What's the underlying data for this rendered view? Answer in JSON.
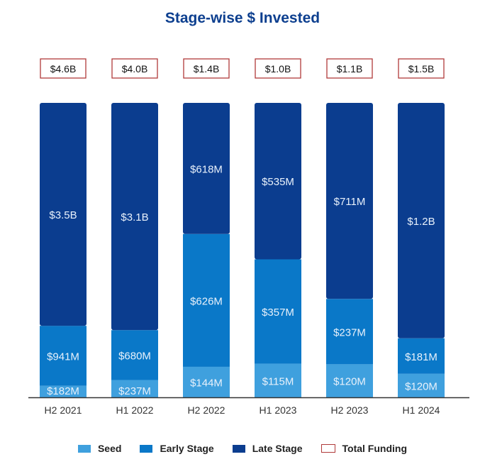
{
  "chart_data": {
    "type": "bar",
    "stacked": true,
    "normalized": true,
    "title": "Stage-wise $ Invested",
    "categories": [
      "H2 2021",
      "H1 2022",
      "H2 2022",
      "H1 2023",
      "H2 2023",
      "H1 2024"
    ],
    "series": [
      {
        "name": "Seed",
        "color": "#3fa0de",
        "values_musd": [
          182,
          237,
          144,
          115,
          120,
          120
        ],
        "labels": [
          "$182M",
          "$237M",
          "$144M",
          "$115M",
          "$120M",
          "$120M"
        ]
      },
      {
        "name": "Early Stage",
        "color": "#0a78c8",
        "values_musd": [
          941,
          680,
          626,
          357,
          237,
          181
        ],
        "labels": [
          "$941M",
          "$680M",
          "$626M",
          "$357M",
          "$237M",
          "$181M"
        ]
      },
      {
        "name": "Late Stage",
        "color": "#0b3d8f",
        "values_musd": [
          3500,
          3100,
          618,
          535,
          711,
          1200
        ],
        "labels": [
          "$3.5B",
          "$3.1B",
          "$618M",
          "$535M",
          "$711M",
          "$1.2B"
        ]
      }
    ],
    "total_funding": {
      "name": "Total Funding",
      "color": "#b03a3a",
      "labels": [
        "$4.6B",
        "$4.0B",
        "$1.4B",
        "$1.0B",
        "$1.1B",
        "$1.5B"
      ]
    },
    "legend_position": "bottom",
    "grid": false
  }
}
